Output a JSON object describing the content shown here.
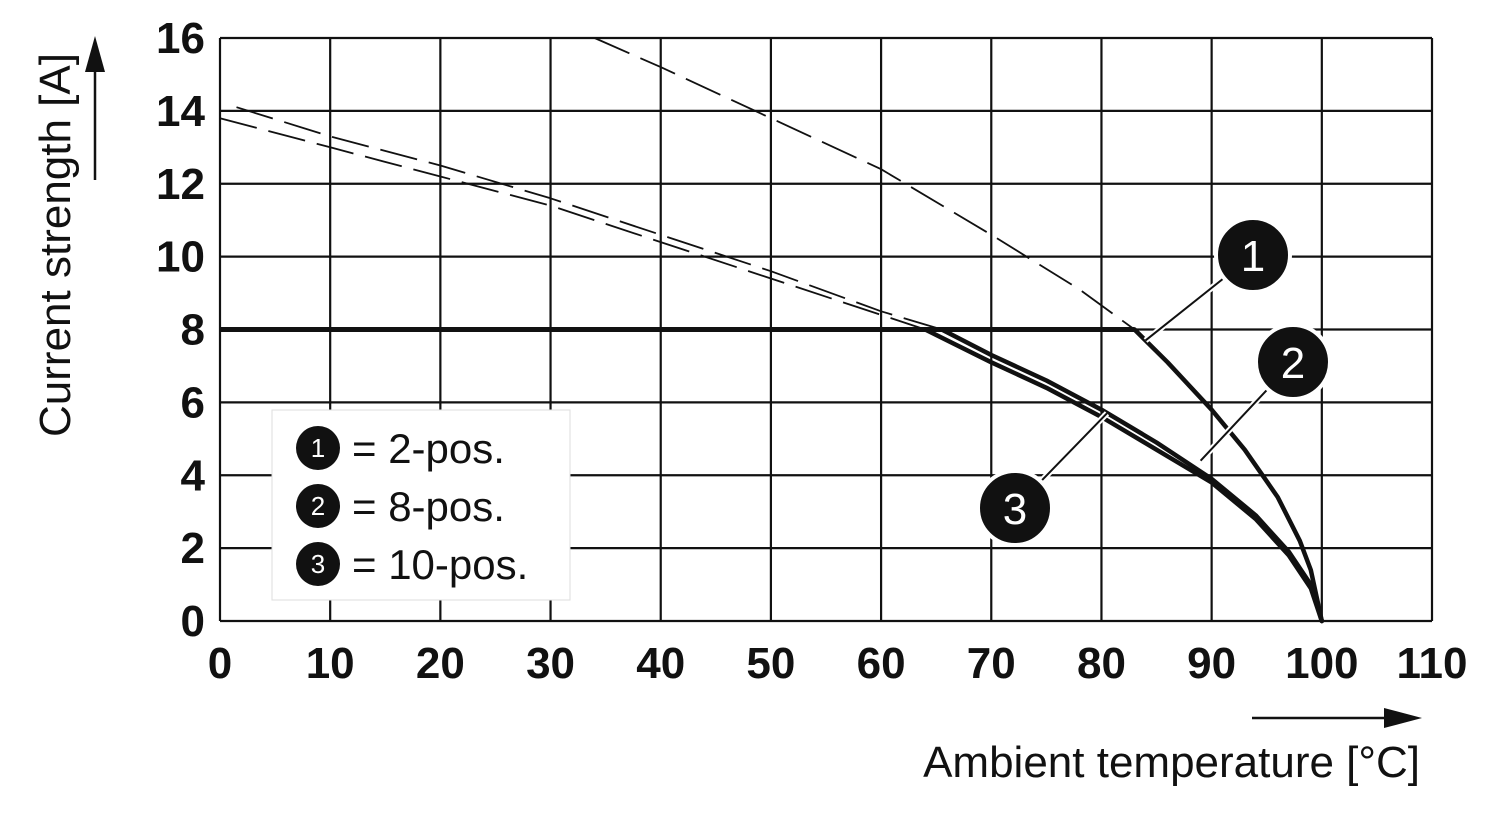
{
  "chart_data": {
    "type": "line",
    "xlabel": "Ambient temperature [°C]",
    "ylabel": "Current strength [A]",
    "xlim": [
      0,
      110
    ],
    "ylim": [
      0,
      16
    ],
    "x_ticks": [
      "0",
      "10",
      "20",
      "30",
      "40",
      "50",
      "60",
      "70",
      "80",
      "90",
      "100",
      "110"
    ],
    "y_ticks": [
      "0",
      "2",
      "4",
      "6",
      "8",
      "10",
      "12",
      "14",
      "16"
    ],
    "grid": true,
    "legend_position": "lower-left",
    "legend": [
      {
        "marker": "1",
        "text": "= 2-pos."
      },
      {
        "marker": "2",
        "text": "= 8-pos."
      },
      {
        "marker": "3",
        "text": "= 10-pos."
      }
    ],
    "limit_line": {
      "y": 8,
      "x": [
        0,
        83
      ]
    },
    "series": [
      {
        "marker": "1",
        "style": "solid",
        "points": [
          [
            83,
            8
          ],
          [
            86,
            7.1
          ],
          [
            90,
            5.8
          ],
          [
            93,
            4.7
          ],
          [
            96,
            3.4
          ],
          [
            98,
            2.2
          ],
          [
            99,
            1.4
          ],
          [
            100,
            0
          ]
        ]
      },
      {
        "marker": "2",
        "style": "solid",
        "points": [
          [
            65.5,
            8
          ],
          [
            70,
            7.3
          ],
          [
            75,
            6.6
          ],
          [
            80,
            5.8
          ],
          [
            85,
            4.9
          ],
          [
            90,
            3.9
          ],
          [
            94,
            2.9
          ],
          [
            97,
            1.9
          ],
          [
            99,
            1.0
          ],
          [
            100,
            0
          ]
        ]
      },
      {
        "marker": "3",
        "style": "solid",
        "points": [
          [
            64,
            8
          ],
          [
            70,
            7.1
          ],
          [
            75,
            6.4
          ],
          [
            80,
            5.6
          ],
          [
            85,
            4.7
          ],
          [
            90,
            3.8
          ],
          [
            94,
            2.8
          ],
          [
            97,
            1.8
          ],
          [
            99,
            0.9
          ],
          [
            100,
            0
          ]
        ]
      },
      {
        "marker": "1",
        "style": "dashed",
        "points": [
          [
            34,
            16
          ],
          [
            40,
            15.2
          ],
          [
            50,
            13.8
          ],
          [
            60,
            12.4
          ],
          [
            70,
            10.6
          ],
          [
            78,
            9.1
          ],
          [
            83,
            8
          ]
        ]
      },
      {
        "marker": "2",
        "style": "dashed",
        "points": [
          [
            1.5,
            14.1
          ],
          [
            10,
            13.3
          ],
          [
            20,
            12.5
          ],
          [
            30,
            11.6
          ],
          [
            40,
            10.6
          ],
          [
            50,
            9.6
          ],
          [
            60,
            8.5
          ],
          [
            65.5,
            8
          ]
        ]
      },
      {
        "marker": "3",
        "style": "dashed",
        "points": [
          [
            0,
            13.8
          ],
          [
            10,
            13.0
          ],
          [
            20,
            12.2
          ],
          [
            30,
            11.4
          ],
          [
            40,
            10.4
          ],
          [
            50,
            9.4
          ],
          [
            60,
            8.4
          ],
          [
            64,
            8
          ]
        ]
      }
    ],
    "callouts": [
      {
        "label": "1",
        "anchor": [
          84,
          7.7
        ]
      },
      {
        "label": "2",
        "anchor": [
          89,
          4.4
        ]
      },
      {
        "label": "3",
        "anchor": [
          80.5,
          5.7
        ]
      }
    ],
    "colors": {
      "line": "#111111",
      "grid": "#111111",
      "badge": "#111111",
      "badge_text": "#ffffff"
    }
  }
}
